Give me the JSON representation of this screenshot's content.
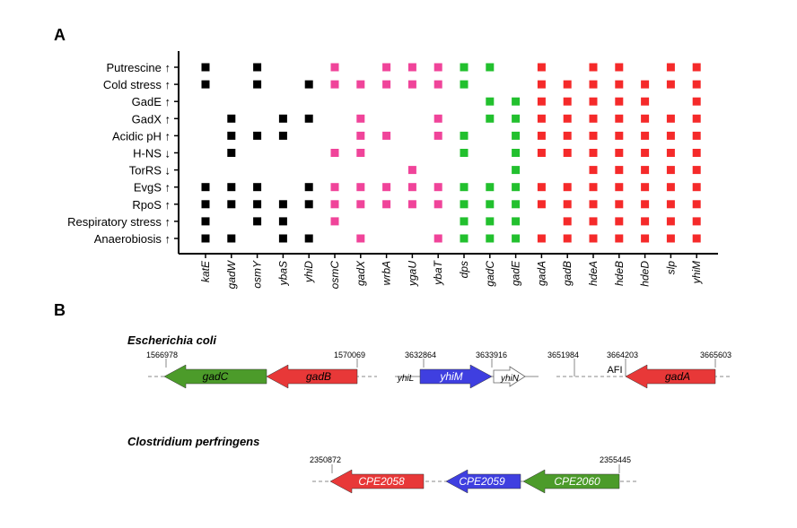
{
  "panel_a": {
    "label": "A",
    "columns": [
      {
        "label": "katE",
        "color": "#000000"
      },
      {
        "label": "gadW",
        "color": "#000000"
      },
      {
        "label": "osmY",
        "color": "#000000"
      },
      {
        "label": "ybaS",
        "color": "#000000"
      },
      {
        "label": "yhiD",
        "color": "#000000"
      },
      {
        "label": "osmC",
        "color": "#f0449a"
      },
      {
        "label": "gadX",
        "color": "#f0449a"
      },
      {
        "label": "wrbA",
        "color": "#f0449a"
      },
      {
        "label": "ygaU",
        "color": "#f0449a"
      },
      {
        "label": "ybaT",
        "color": "#f0449a"
      },
      {
        "label": "dps",
        "color": "#22c02e"
      },
      {
        "label": "gadC",
        "color": "#22c02e"
      },
      {
        "label": "gadE",
        "color": "#22c02e"
      },
      {
        "label": "gadA",
        "color": "#f52a2a"
      },
      {
        "label": "gadB",
        "color": "#f52a2a"
      },
      {
        "label": "hdeA",
        "color": "#f52a2a"
      },
      {
        "label": "hdeB",
        "color": "#f52a2a"
      },
      {
        "label": "hdeD",
        "color": "#f52a2a"
      },
      {
        "label": "slp",
        "color": "#f52a2a"
      },
      {
        "label": "yhiM",
        "color": "#f52a2a"
      }
    ],
    "rows": [
      {
        "label": "Putrescine ↑",
        "cells": [
          true,
          false,
          true,
          false,
          false,
          true,
          false,
          true,
          true,
          true,
          true,
          true,
          false,
          true,
          false,
          true,
          true,
          false,
          true,
          true
        ]
      },
      {
        "label": "Cold stress ↑",
        "cells": [
          true,
          false,
          true,
          false,
          true,
          true,
          true,
          true,
          true,
          true,
          true,
          false,
          false,
          true,
          true,
          true,
          true,
          true,
          true,
          true
        ]
      },
      {
        "label": "GadE ↑",
        "cells": [
          false,
          false,
          false,
          false,
          false,
          false,
          false,
          false,
          false,
          false,
          false,
          true,
          true,
          true,
          true,
          true,
          true,
          true,
          false,
          true
        ]
      },
      {
        "label": "GadX ↑",
        "cells": [
          false,
          true,
          false,
          true,
          true,
          false,
          true,
          false,
          false,
          true,
          false,
          true,
          true,
          true,
          true,
          true,
          true,
          true,
          true,
          true
        ]
      },
      {
        "label": "Acidic pH ↑",
        "cells": [
          false,
          true,
          true,
          true,
          false,
          false,
          true,
          true,
          false,
          true,
          true,
          false,
          true,
          true,
          true,
          true,
          true,
          true,
          true,
          true
        ]
      },
      {
        "label": "H-NS ↓",
        "cells": [
          false,
          true,
          false,
          false,
          false,
          true,
          true,
          false,
          false,
          false,
          true,
          false,
          true,
          true,
          true,
          true,
          true,
          true,
          true,
          true
        ]
      },
      {
        "label": "TorRS ↓",
        "cells": [
          false,
          false,
          false,
          false,
          false,
          false,
          false,
          false,
          true,
          false,
          false,
          false,
          true,
          false,
          false,
          true,
          true,
          true,
          true,
          true
        ]
      },
      {
        "label": "EvgS ↑",
        "cells": [
          true,
          true,
          true,
          false,
          true,
          true,
          true,
          true,
          true,
          true,
          true,
          true,
          true,
          true,
          true,
          true,
          true,
          true,
          true,
          true
        ]
      },
      {
        "label": "RpoS ↑",
        "cells": [
          true,
          true,
          true,
          true,
          true,
          true,
          true,
          true,
          true,
          true,
          true,
          true,
          true,
          true,
          true,
          true,
          true,
          true,
          true,
          true
        ]
      },
      {
        "label": "Respiratory stress ↑",
        "cells": [
          true,
          false,
          true,
          true,
          false,
          true,
          false,
          false,
          false,
          false,
          true,
          true,
          true,
          false,
          true,
          true,
          true,
          true,
          true,
          true
        ]
      },
      {
        "label": "Anaerobiosis ↑",
        "cells": [
          true,
          true,
          false,
          true,
          true,
          false,
          true,
          false,
          false,
          true,
          true,
          true,
          true,
          true,
          true,
          true,
          true,
          true,
          true,
          true
        ]
      }
    ]
  },
  "panel_b": {
    "label": "B",
    "ecoli": {
      "organism": "Escherichia coli",
      "coords": [
        "1566978",
        "1570069",
        "3632864",
        "3633916",
        "3651984",
        "3664203",
        "3665603"
      ],
      "genes": [
        "gadC",
        "gadB",
        "yhiL",
        "yhiM",
        "yhiN",
        "AFI",
        "gadA"
      ]
    },
    "cperf": {
      "organism": "Clostridium perfringens",
      "coords": [
        "2350872",
        "2355445"
      ],
      "genes": [
        "CPE2058",
        "CPE2059",
        "CPE2060"
      ]
    }
  }
}
